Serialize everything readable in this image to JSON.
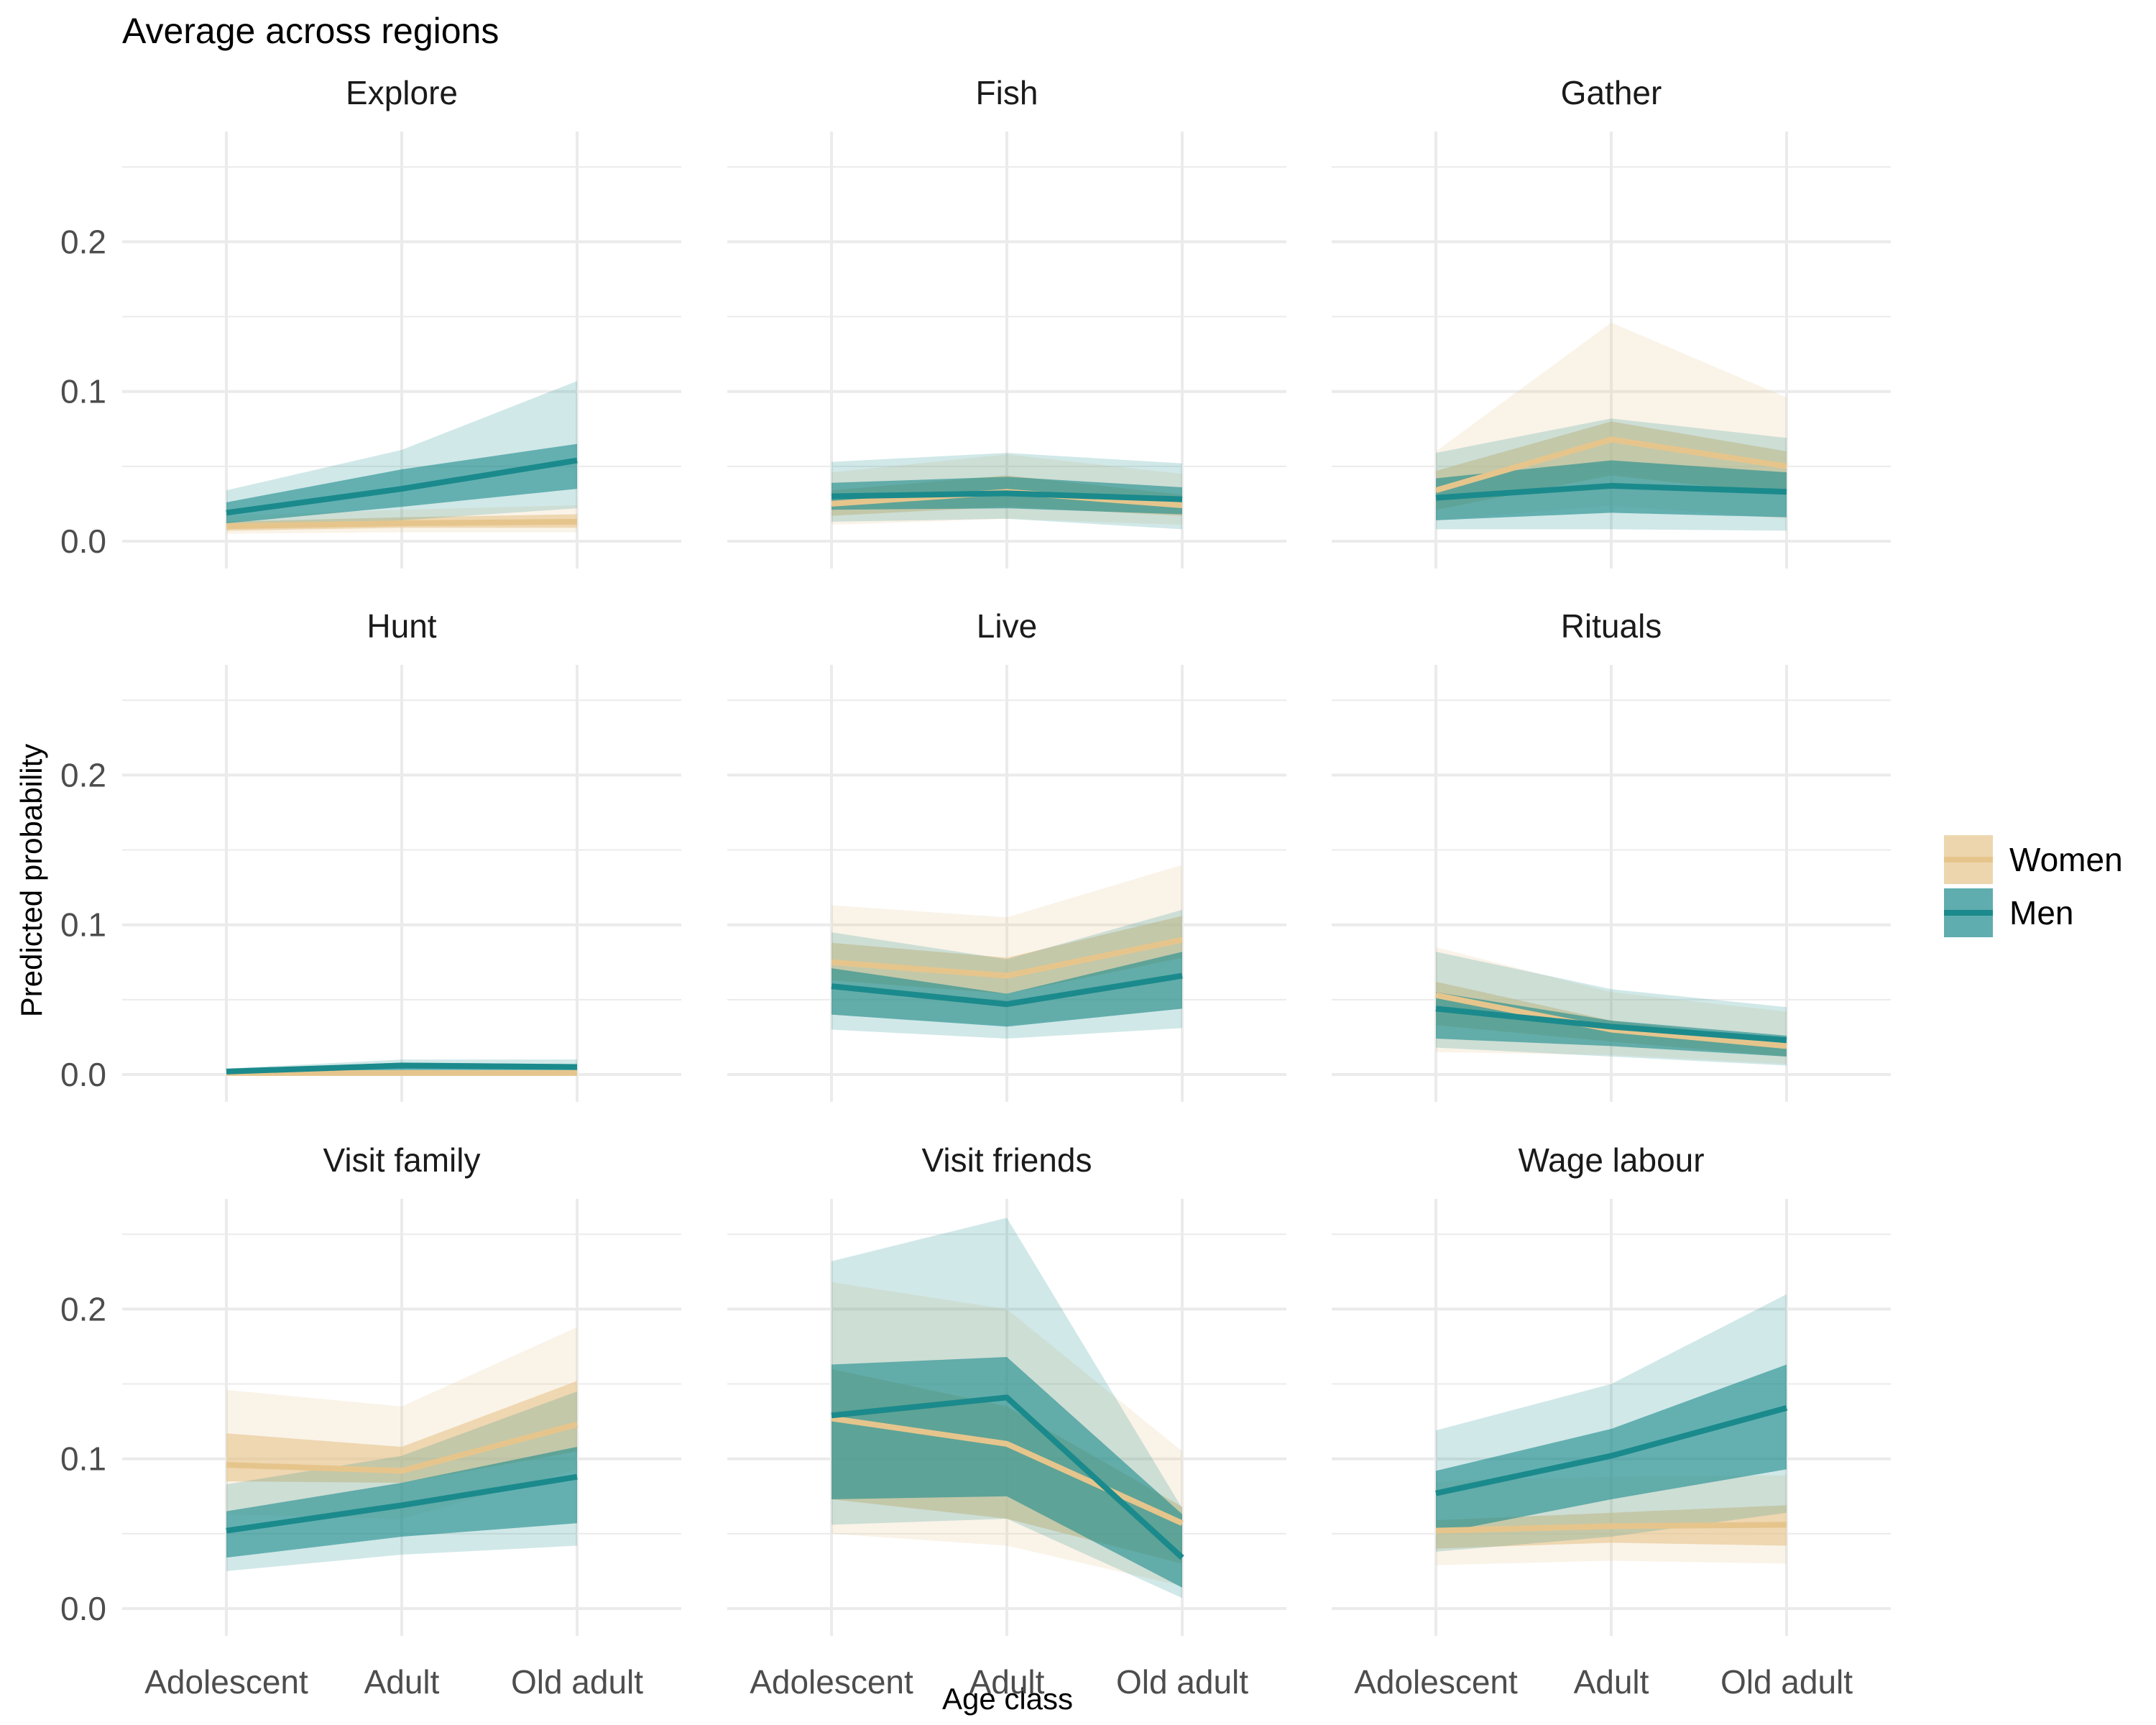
{
  "chart_data": {
    "type": "line",
    "title": "Average across regions",
    "xlabel": "Age class",
    "ylabel": "Predicted probability",
    "categories": [
      "Adolescent",
      "Adult",
      "Old adult"
    ],
    "ylim": [
      0,
      0.25
    ],
    "yticks": [
      0.0,
      0.1,
      0.2
    ],
    "ytick_labels": [
      "0.0",
      "0.1",
      "0.2"
    ],
    "grid": true,
    "legend": {
      "position": "right",
      "items": [
        {
          "name": "Women",
          "color": "#e6c58c"
        },
        {
          "name": "Men",
          "color": "#1b8a8c"
        }
      ]
    },
    "panels": [
      {
        "title": "Explore",
        "series": [
          {
            "name": "Women",
            "values": [
              0.01,
              0.012,
              0.013
            ],
            "inner_lo": [
              0.007,
              0.009,
              0.009
            ],
            "inner_hi": [
              0.013,
              0.016,
              0.018
            ],
            "outer_lo": [
              0.005,
              0.006,
              0.006
            ],
            "outer_hi": [
              0.017,
              0.021,
              0.024
            ]
          },
          {
            "name": "Men",
            "values": [
              0.019,
              0.035,
              0.054
            ],
            "inner_lo": [
              0.012,
              0.023,
              0.035
            ],
            "inner_hi": [
              0.026,
              0.048,
              0.065
            ],
            "outer_lo": [
              0.008,
              0.014,
              0.022
            ],
            "outer_hi": [
              0.034,
              0.061,
              0.107
            ]
          }
        ]
      },
      {
        "title": "Fish",
        "series": [
          {
            "name": "Women",
            "values": [
              0.025,
              0.033,
              0.024
            ],
            "inner_lo": [
              0.017,
              0.023,
              0.017
            ],
            "inner_hi": [
              0.034,
              0.044,
              0.031
            ],
            "outer_lo": [
              0.011,
              0.015,
              0.011
            ],
            "outer_hi": [
              0.046,
              0.058,
              0.045
            ]
          },
          {
            "name": "Men",
            "values": [
              0.03,
              0.032,
              0.028
            ],
            "inner_lo": [
              0.021,
              0.022,
              0.018
            ],
            "inner_hi": [
              0.039,
              0.043,
              0.036
            ],
            "outer_lo": [
              0.013,
              0.015,
              0.008
            ],
            "outer_hi": [
              0.053,
              0.059,
              0.052
            ]
          }
        ]
      },
      {
        "title": "Gather",
        "series": [
          {
            "name": "Women",
            "values": [
              0.034,
              0.068,
              0.05
            ],
            "inner_lo": [
              0.021,
              0.044,
              0.031
            ],
            "inner_hi": [
              0.047,
              0.08,
              0.06
            ],
            "outer_lo": [
              0.014,
              0.024,
              0.015
            ],
            "outer_hi": [
              0.06,
              0.146,
              0.096
            ]
          },
          {
            "name": "Men",
            "values": [
              0.029,
              0.037,
              0.033
            ],
            "inner_lo": [
              0.014,
              0.019,
              0.016
            ],
            "inner_hi": [
              0.042,
              0.054,
              0.046
            ],
            "outer_lo": [
              0.008,
              0.008,
              0.007
            ],
            "outer_hi": [
              0.059,
              0.082,
              0.069
            ]
          }
        ]
      },
      {
        "title": "Hunt",
        "series": [
          {
            "name": "Women",
            "values": [
              0.001,
              0.001,
              0.001
            ],
            "inner_lo": [
              0.0,
              0.0,
              0.0
            ],
            "inner_hi": [
              0.002,
              0.002,
              0.002
            ],
            "outer_lo": [
              0.0,
              0.0,
              0.0
            ],
            "outer_hi": [
              0.003,
              0.003,
              0.003
            ]
          },
          {
            "name": "Men",
            "values": [
              0.002,
              0.006,
              0.005
            ],
            "inner_lo": [
              0.001,
              0.003,
              0.003
            ],
            "inner_hi": [
              0.003,
              0.008,
              0.007
            ],
            "outer_lo": [
              0.0,
              0.001,
              0.001
            ],
            "outer_hi": [
              0.004,
              0.01,
              0.01
            ]
          }
        ]
      },
      {
        "title": "Live",
        "series": [
          {
            "name": "Women",
            "values": [
              0.075,
              0.066,
              0.09
            ],
            "inner_lo": [
              0.063,
              0.054,
              0.078
            ],
            "inner_hi": [
              0.088,
              0.078,
              0.106
            ],
            "outer_lo": [
              0.04,
              0.033,
              0.044
            ],
            "outer_hi": [
              0.113,
              0.105,
              0.14
            ]
          },
          {
            "name": "Men",
            "values": [
              0.059,
              0.047,
              0.066
            ],
            "inner_lo": [
              0.04,
              0.032,
              0.044
            ],
            "inner_hi": [
              0.071,
              0.054,
              0.082
            ],
            "outer_lo": [
              0.03,
              0.024,
              0.031
            ],
            "outer_hi": [
              0.095,
              0.077,
              0.11
            ]
          }
        ]
      },
      {
        "title": "Rituals",
        "series": [
          {
            "name": "Women",
            "values": [
              0.053,
              0.03,
              0.019
            ],
            "inner_lo": [
              0.033,
              0.022,
              0.012
            ],
            "inner_hi": [
              0.062,
              0.036,
              0.023
            ],
            "outer_lo": [
              0.015,
              0.013,
              0.007
            ],
            "outer_hi": [
              0.085,
              0.055,
              0.042
            ]
          },
          {
            "name": "Men",
            "values": [
              0.044,
              0.032,
              0.023
            ],
            "inner_lo": [
              0.024,
              0.019,
              0.012
            ],
            "inner_hi": [
              0.055,
              0.036,
              0.026
            ],
            "outer_lo": [
              0.018,
              0.012,
              0.006
            ],
            "outer_hi": [
              0.082,
              0.057,
              0.045
            ]
          }
        ]
      },
      {
        "title": "Visit family",
        "series": [
          {
            "name": "Women",
            "values": [
              0.096,
              0.092,
              0.123
            ],
            "inner_lo": [
              0.085,
              0.084,
              0.105
            ],
            "inner_hi": [
              0.117,
              0.108,
              0.152
            ],
            "outer_lo": [
              0.063,
              0.06,
              0.093
            ],
            "outer_hi": [
              0.146,
              0.135,
              0.188
            ]
          },
          {
            "name": "Men",
            "values": [
              0.052,
              0.069,
              0.088
            ],
            "inner_lo": [
              0.034,
              0.048,
              0.057
            ],
            "inner_hi": [
              0.065,
              0.084,
              0.108
            ],
            "outer_lo": [
              0.025,
              0.036,
              0.042
            ],
            "outer_hi": [
              0.083,
              0.102,
              0.145
            ]
          }
        ]
      },
      {
        "title": "Visit friends",
        "series": [
          {
            "name": "Women",
            "values": [
              0.127,
              0.11,
              0.057
            ],
            "inner_lo": [
              0.073,
              0.06,
              0.03
            ],
            "inner_hi": [
              0.16,
              0.135,
              0.068
            ],
            "outer_lo": [
              0.05,
              0.042,
              0.015
            ],
            "outer_hi": [
              0.218,
              0.2,
              0.105
            ]
          },
          {
            "name": "Men",
            "values": [
              0.129,
              0.141,
              0.034
            ],
            "inner_lo": [
              0.073,
              0.075,
              0.014
            ],
            "inner_hi": [
              0.163,
              0.168,
              0.063
            ],
            "outer_lo": [
              0.056,
              0.06,
              0.007
            ],
            "outer_hi": [
              0.232,
              0.261,
              0.067
            ]
          }
        ]
      },
      {
        "title": "Wage labour",
        "series": [
          {
            "name": "Women",
            "values": [
              0.052,
              0.055,
              0.056
            ],
            "inner_lo": [
              0.04,
              0.044,
              0.042
            ],
            "inner_hi": [
              0.059,
              0.064,
              0.069
            ],
            "outer_lo": [
              0.029,
              0.032,
              0.03
            ],
            "outer_hi": [
              0.085,
              0.088,
              0.089
            ]
          },
          {
            "name": "Men",
            "values": [
              0.077,
              0.102,
              0.134
            ],
            "inner_lo": [
              0.05,
              0.073,
              0.093
            ],
            "inner_hi": [
              0.092,
              0.12,
              0.163
            ],
            "outer_lo": [
              0.038,
              0.048,
              0.064
            ],
            "outer_hi": [
              0.119,
              0.15,
              0.21
            ]
          }
        ]
      }
    ]
  }
}
